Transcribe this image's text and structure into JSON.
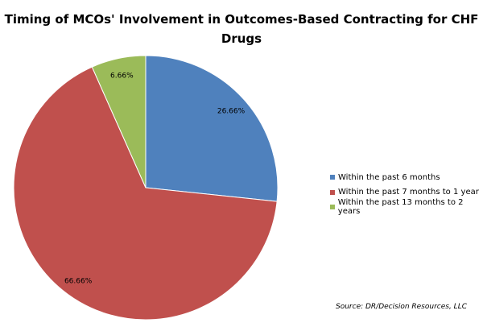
{
  "chart_data": {
    "type": "pie",
    "title": "Timing of MCOs' Involvement in Outcomes-Based Contracting for CHF Drugs",
    "start": "top",
    "direction": "clockwise",
    "legend_position": "right",
    "slices": [
      {
        "name": "Within the past 6 months",
        "value": 26.66,
        "label": "26.66%",
        "color": "#4F81BD"
      },
      {
        "name": "Within the past 7 months to 1 year",
        "value": 66.66,
        "label": "66.66%",
        "color": "#C0504D"
      },
      {
        "name": "Within the past 13 months to 2 years",
        "value": 6.66,
        "label": "6.66%",
        "color": "#9BBB59"
      }
    ],
    "source": "Source: DR/Decision Resources, LLC"
  }
}
